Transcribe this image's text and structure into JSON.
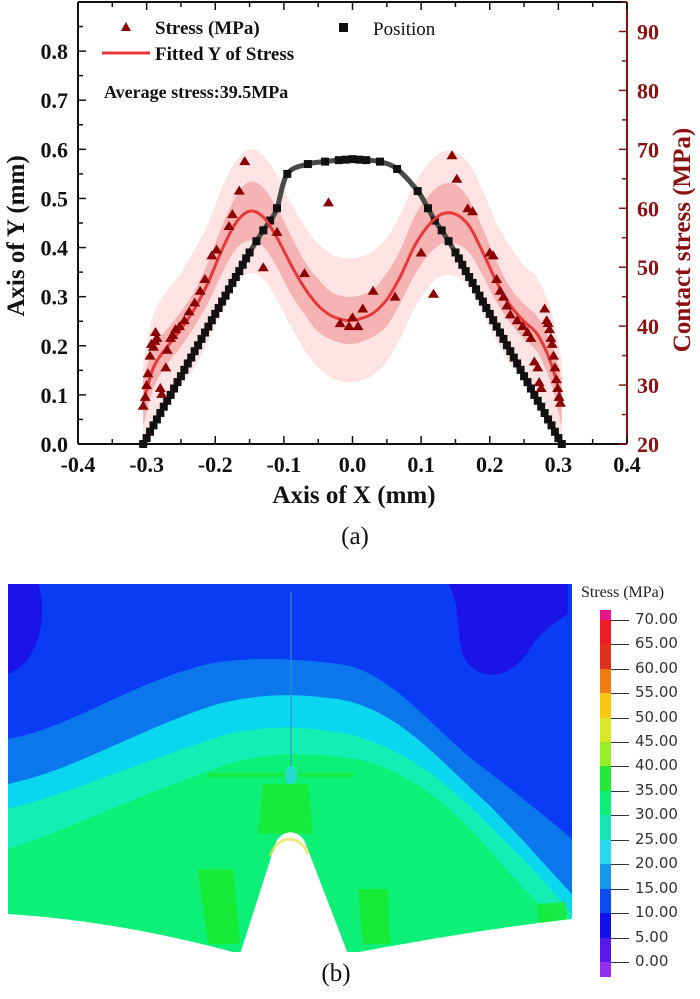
{
  "chart_data": [
    {
      "id": "a",
      "type": "scatter",
      "caption": "(a)",
      "xlabel": "Axis of X (mm)",
      "ylabel": "Axis of Y (mm)",
      "y2label": "Contact stress (MPa)",
      "xlim": [
        -0.4,
        0.4
      ],
      "ylim": [
        0.0,
        0.9
      ],
      "y2lim": [
        20,
        95
      ],
      "xticks": [
        "-0.4",
        "-0.3",
        "-0.2",
        "-0.1",
        "0.0",
        "0.1",
        "0.2",
        "0.3",
        "0.4"
      ],
      "xtick_values": [
        -0.4,
        -0.3,
        -0.2,
        -0.1,
        0.0,
        0.1,
        0.2,
        0.3,
        0.4
      ],
      "yticks": [
        "0.0",
        "0.1",
        "0.2",
        "0.3",
        "0.4",
        "0.5",
        "0.6",
        "0.7",
        "0.8"
      ],
      "ytick_values": [
        0.0,
        0.1,
        0.2,
        0.3,
        0.4,
        0.5,
        0.6,
        0.7,
        0.8
      ],
      "y2ticks": [
        "20",
        "30",
        "40",
        "50",
        "60",
        "70",
        "80",
        "90"
      ],
      "y2tick_values": [
        20,
        30,
        40,
        50,
        60,
        70,
        80,
        90
      ],
      "grid": false,
      "legend": {
        "placement": "top",
        "entries": [
          {
            "name": "Stress (MPa)",
            "marker": "triangle",
            "color": "#8b0000"
          },
          {
            "name": "Position",
            "marker": "square",
            "color": "#111111"
          },
          {
            "name": "Fitted Y of Stress",
            "marker": "line",
            "color": "#e8383a"
          }
        ]
      },
      "annotation": "Average stress:39.5MPa",
      "colors": {
        "stress": "#8b0000",
        "fit": "#e8383a",
        "band_inner": "#f6b3b3",
        "band_outer": "#fde3e3",
        "position_line": "#4a4a4a",
        "position_marker": "#111111",
        "right_axis": "#8b1010"
      },
      "series": [
        {
          "name": "Position",
          "axis": "left",
          "x": [
            -0.305,
            -0.3,
            -0.295,
            -0.29,
            -0.285,
            -0.28,
            -0.275,
            -0.27,
            -0.265,
            -0.26,
            -0.255,
            -0.25,
            -0.245,
            -0.24,
            -0.235,
            -0.23,
            -0.225,
            -0.22,
            -0.215,
            -0.21,
            -0.205,
            -0.2,
            -0.195,
            -0.19,
            -0.185,
            -0.18,
            -0.175,
            -0.17,
            -0.165,
            -0.16,
            -0.155,
            -0.15,
            -0.14,
            -0.13,
            -0.12,
            -0.11,
            -0.095,
            -0.065,
            -0.04,
            -0.02,
            -0.01,
            0.0,
            0.01,
            0.02,
            0.04,
            0.065,
            0.095,
            0.11,
            0.12,
            0.13,
            0.14,
            0.15,
            0.155,
            0.16,
            0.165,
            0.17,
            0.175,
            0.18,
            0.185,
            0.19,
            0.195,
            0.2,
            0.205,
            0.21,
            0.215,
            0.22,
            0.225,
            0.23,
            0.235,
            0.24,
            0.245,
            0.25,
            0.255,
            0.26,
            0.265,
            0.27,
            0.275,
            0.28,
            0.285,
            0.29,
            0.295,
            0.3,
            0.305
          ],
          "y": [
            0.0,
            0.012,
            0.025,
            0.038,
            0.05,
            0.063,
            0.076,
            0.088,
            0.1,
            0.113,
            0.126,
            0.138,
            0.151,
            0.164,
            0.176,
            0.189,
            0.201,
            0.214,
            0.227,
            0.239,
            0.252,
            0.265,
            0.277,
            0.29,
            0.302,
            0.315,
            0.328,
            0.34,
            0.352,
            0.365,
            0.378,
            0.39,
            0.413,
            0.435,
            0.455,
            0.48,
            0.55,
            0.57,
            0.575,
            0.578,
            0.579,
            0.58,
            0.579,
            0.578,
            0.575,
            0.56,
            0.515,
            0.48,
            0.455,
            0.435,
            0.413,
            0.39,
            0.378,
            0.365,
            0.352,
            0.34,
            0.328,
            0.315,
            0.302,
            0.29,
            0.277,
            0.265,
            0.252,
            0.239,
            0.227,
            0.214,
            0.201,
            0.189,
            0.176,
            0.164,
            0.151,
            0.138,
            0.126,
            0.113,
            0.1,
            0.088,
            0.076,
            0.063,
            0.05,
            0.038,
            0.025,
            0.012,
            0.0
          ]
        },
        {
          "name": "Stress (MPa)",
          "axis": "right",
          "x": [
            -0.305,
            -0.302,
            -0.3,
            -0.298,
            -0.295,
            -0.293,
            -0.29,
            -0.288,
            -0.287,
            -0.285,
            -0.28,
            -0.278,
            -0.272,
            -0.27,
            -0.265,
            -0.262,
            -0.258,
            -0.252,
            -0.245,
            -0.238,
            -0.23,
            -0.222,
            -0.215,
            -0.205,
            -0.198,
            -0.18,
            -0.175,
            -0.165,
            -0.157,
            -0.13,
            -0.11,
            -0.07,
            -0.035,
            -0.018,
            -0.005,
            0.0,
            0.008,
            0.015,
            0.03,
            0.062,
            0.1,
            0.118,
            0.145,
            0.152,
            0.168,
            0.175,
            0.2,
            0.205,
            0.21,
            0.215,
            0.22,
            0.225,
            0.23,
            0.24,
            0.248,
            0.255,
            0.26,
            0.265,
            0.27,
            0.272,
            0.275,
            0.28,
            0.283,
            0.285,
            0.287,
            0.289,
            0.291,
            0.293,
            0.295,
            0.297,
            0.299,
            0.301,
            0.303
          ],
          "y": [
            26.5,
            28,
            30,
            32,
            35,
            37,
            36.5,
            37.5,
            39,
            38,
            29.5,
            28.5,
            33,
            36,
            38,
            38.5,
            39.5,
            40,
            41,
            42.5,
            44,
            46,
            48,
            52,
            53,
            57,
            59,
            63,
            68,
            50,
            56,
            49,
            61,
            40.5,
            40,
            41.5,
            40,
            43,
            46,
            45,
            52.5,
            45.5,
            69,
            65,
            60,
            59.5,
            52.5,
            52,
            48,
            46,
            45,
            43.5,
            42,
            41,
            40,
            39,
            38,
            34,
            33,
            30.5,
            29.5,
            43,
            41,
            40.5,
            39.5,
            38,
            37,
            35,
            33,
            31,
            29.5,
            28,
            27
          ]
        },
        {
          "name": "Fitted Y of Stress",
          "axis": "right",
          "type": "line",
          "x": [
            -0.305,
            -0.29,
            -0.27,
            -0.25,
            -0.23,
            -0.21,
            -0.19,
            -0.17,
            -0.15,
            -0.13,
            -0.11,
            -0.09,
            -0.07,
            -0.05,
            -0.03,
            -0.01,
            0.0,
            0.01,
            0.03,
            0.05,
            0.07,
            0.09,
            0.11,
            0.13,
            0.15,
            0.17,
            0.19,
            0.21,
            0.23,
            0.25,
            0.27,
            0.29,
            0.305
          ],
          "y": [
            27,
            33,
            36.5,
            39.5,
            43,
            47.5,
            53,
            57.5,
            59.5,
            58.5,
            55,
            50.5,
            46.5,
            43.5,
            41.7,
            41,
            41,
            41.2,
            42.2,
            44.5,
            48.5,
            53.5,
            57,
            59,
            59,
            57,
            52.5,
            47.5,
            43.5,
            40.8,
            38.5,
            33.5,
            27
          ],
          "band_inner_halfwidth": [
            4,
            3.5,
            3,
            3,
            3,
            3.5,
            4,
            4.5,
            5,
            5,
            5,
            5,
            4.5,
            4.5,
            4,
            4,
            4,
            4,
            4,
            4.5,
            4.5,
            5,
            5,
            5,
            5,
            4.5,
            4,
            3.5,
            3,
            3,
            3,
            3.5,
            4
          ],
          "band_outer_halfwidth": [
            7,
            9,
            9.5,
            9.5,
            10,
            10,
            10.5,
            10.5,
            10.5,
            10.5,
            10.5,
            10.5,
            10.5,
            10.5,
            10.5,
            10.5,
            10.5,
            10.5,
            10.5,
            10.5,
            10.5,
            10.5,
            10.5,
            10.5,
            10.5,
            10.5,
            10.5,
            10,
            10,
            9.5,
            9.5,
            9,
            7
          ]
        }
      ]
    },
    {
      "id": "b",
      "type": "heatmap",
      "caption": "(b)",
      "title": "Stress (MPa)",
      "colorbar": {
        "title": "Stress (MPa)",
        "labels": [
          "70.00",
          "65.00",
          "60.00",
          "55.00",
          "50.00",
          "45.00",
          "40.00",
          "35.00",
          "30.00",
          "25.00",
          "20.00",
          "15.00",
          "10.00",
          "5.00",
          "0.00"
        ],
        "values": [
          70,
          65,
          60,
          55,
          50,
          45,
          40,
          35,
          30,
          25,
          20,
          15,
          10,
          5,
          0
        ],
        "band_colors_top_to_bottom": [
          "#e8148c",
          "#ee1c24",
          "#e0301e",
          "#f07c14",
          "#f8c814",
          "#d8e828",
          "#9aee28",
          "#22e838",
          "#10ee78",
          "#18e8b8",
          "#28d8f0",
          "#1896e8",
          "#0c4cf0",
          "#1010e8",
          "#5818e8",
          "#9030f0"
        ],
        "range": [
          0,
          72
        ]
      },
      "regions": [
        {
          "name": "low-stress-top",
          "range_mpa": "5-10",
          "color": "#0a3cf5"
        },
        {
          "name": "corner-minimum",
          "range_mpa": "0-5",
          "color": "#1a14e8"
        },
        {
          "name": "band-10-15",
          "range_mpa": "10-15",
          "color": "#0a78ec"
        },
        {
          "name": "band-15-25",
          "range_mpa": "15-25",
          "color": "#0ad6f0"
        },
        {
          "name": "band-25-30",
          "range_mpa": "25-30",
          "color": "#14eeb4"
        },
        {
          "name": "band-30-35",
          "range_mpa": "30-35",
          "color": "#0cf078"
        },
        {
          "name": "band-35-40",
          "range_mpa": "35-40",
          "color": "#18ea2c"
        }
      ]
    }
  ]
}
